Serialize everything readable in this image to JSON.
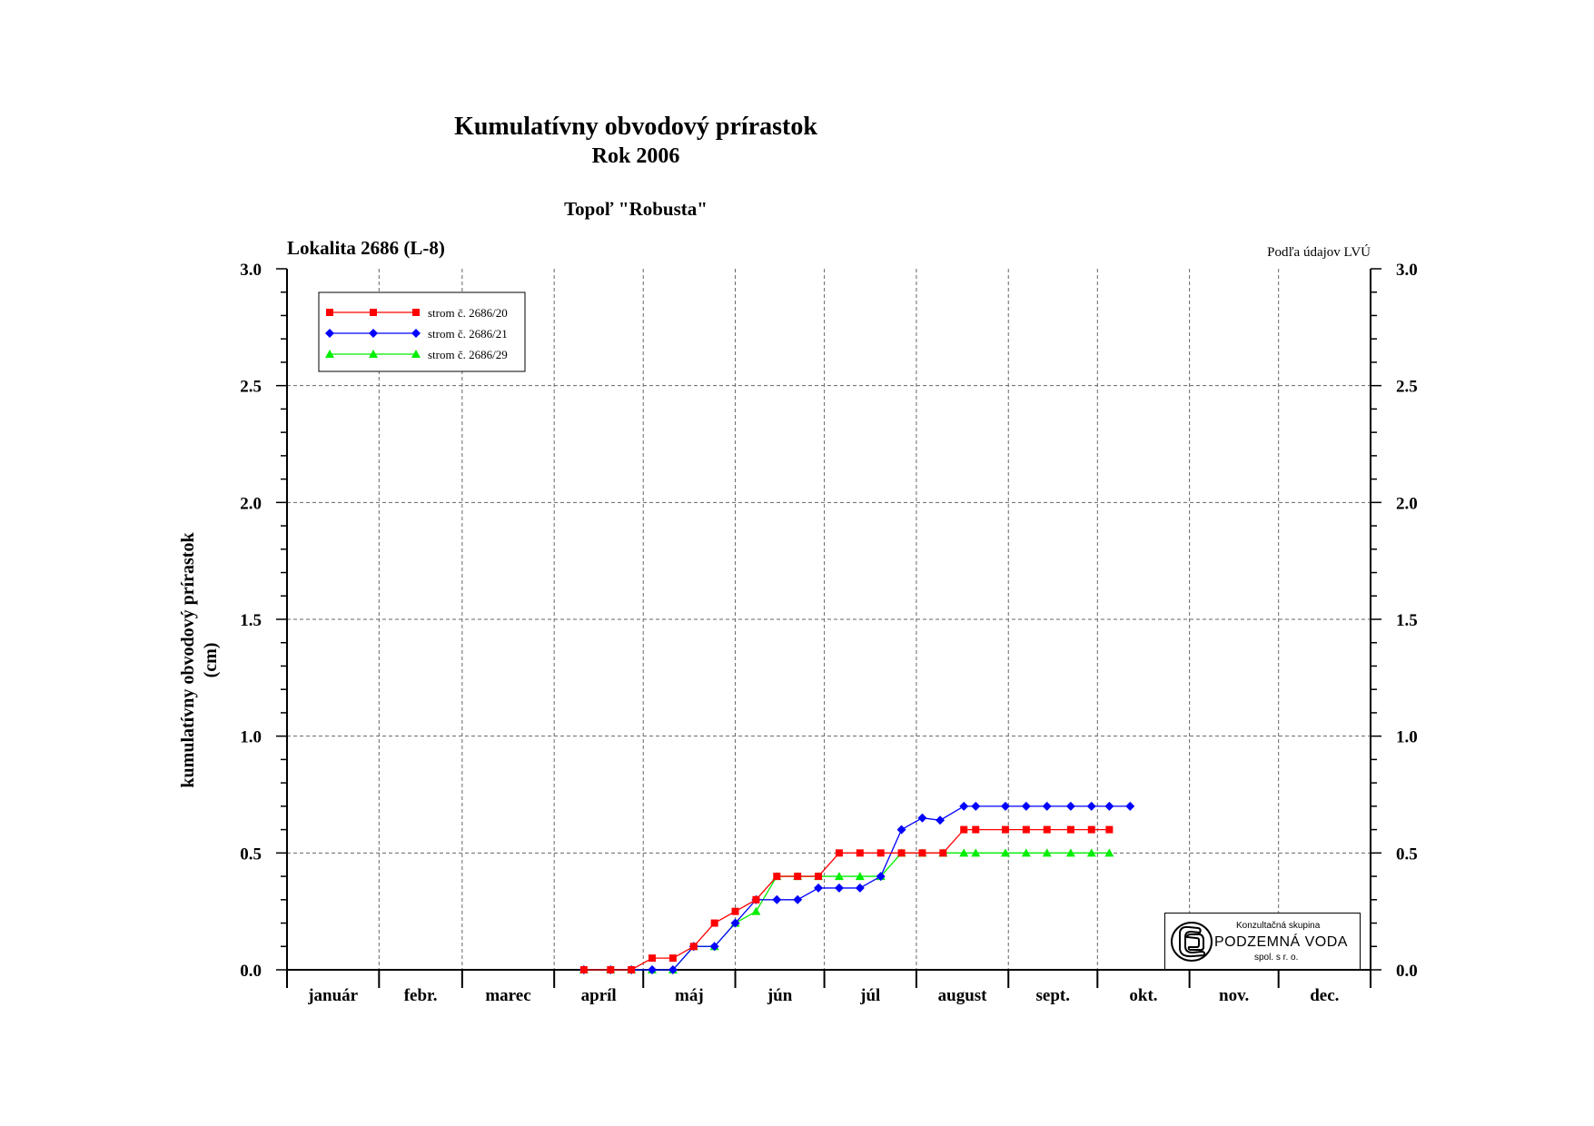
{
  "page": {
    "title": "Kumulatívny obvodový prírastok",
    "subtitle": "Rok 2006",
    "species": "Topoľ \"Robusta\"",
    "location": "Lokalita 2686 (L-8)",
    "source_note": "Podľa údajov LVÚ"
  },
  "logo": {
    "line1": "Konzultačná skupina",
    "line2": "PODZEMNÁ VODA",
    "line3": "spol. s r. o.",
    "icon": "podzemna-voda-logo-icon"
  },
  "chart_data": {
    "type": "line",
    "title": "Kumulatívny obvodový prírastok",
    "ylabel_line1": "kumulatívny obvodový prírastok",
    "ylabel_line2": "(cm)",
    "ylim": [
      0,
      3
    ],
    "y_ticks": [
      "0.0",
      "0.5",
      "1.0",
      "1.5",
      "2.0",
      "2.5",
      "3.0"
    ],
    "y_tick_values": [
      0,
      0.5,
      1,
      1.5,
      2,
      2.5,
      3
    ],
    "x_axis": "day of year 2006",
    "xlim": [
      0,
      365
    ],
    "month_labels": [
      "január",
      "febr.",
      "marec",
      "apríl",
      "máj",
      "jún",
      "júl",
      "august",
      "sept.",
      "okt.",
      "nov.",
      "dec."
    ],
    "month_starts": [
      0,
      31,
      59,
      90,
      120,
      151,
      181,
      212,
      243,
      273,
      304,
      334
    ],
    "grid": true,
    "legend_position": "top-left",
    "series": [
      {
        "name": "strom č. 2686/20",
        "color": "#ff0000",
        "marker": "square",
        "points": [
          [
            100,
            0
          ],
          [
            109,
            0
          ],
          [
            116,
            0
          ],
          [
            123,
            0.05
          ],
          [
            130,
            0.05
          ],
          [
            137,
            0.1
          ],
          [
            144,
            0.2
          ],
          [
            151,
            0.25
          ],
          [
            158,
            0.3
          ],
          [
            165,
            0.4
          ],
          [
            172,
            0.4
          ],
          [
            179,
            0.4
          ],
          [
            186,
            0.5
          ],
          [
            193,
            0.5
          ],
          [
            200,
            0.5
          ],
          [
            207,
            0.5
          ],
          [
            214,
            0.5
          ],
          [
            221,
            0.5
          ],
          [
            228,
            0.6
          ],
          [
            232,
            0.6
          ],
          [
            242,
            0.6
          ],
          [
            249,
            0.6
          ],
          [
            256,
            0.6
          ],
          [
            264,
            0.6
          ],
          [
            271,
            0.6
          ],
          [
            277,
            0.6
          ]
        ]
      },
      {
        "name": "strom č. 2686/21",
        "color": "#0000ff",
        "marker": "diamond",
        "points": [
          [
            100,
            0
          ],
          [
            109,
            0
          ],
          [
            116,
            0
          ],
          [
            123,
            0
          ],
          [
            130,
            0
          ],
          [
            137,
            0.1
          ],
          [
            144,
            0.1
          ],
          [
            151,
            0.2
          ],
          [
            158,
            0.3
          ],
          [
            165,
            0.3
          ],
          [
            172,
            0.3
          ],
          [
            179,
            0.35
          ],
          [
            186,
            0.35
          ],
          [
            193,
            0.35
          ],
          [
            200,
            0.4
          ],
          [
            207,
            0.6
          ],
          [
            214,
            0.65
          ],
          [
            220,
            0.64
          ],
          [
            228,
            0.7
          ],
          [
            232,
            0.7
          ],
          [
            242,
            0.7
          ],
          [
            249,
            0.7
          ],
          [
            256,
            0.7
          ],
          [
            264,
            0.7
          ],
          [
            271,
            0.7
          ],
          [
            277,
            0.7
          ],
          [
            284,
            0.7
          ]
        ]
      },
      {
        "name": "strom č. 2686/29",
        "color": "#00ee00",
        "marker": "triangle",
        "points": [
          [
            100,
            0
          ],
          [
            109,
            0
          ],
          [
            116,
            0
          ],
          [
            123,
            0
          ],
          [
            130,
            0
          ],
          [
            137,
            0.1
          ],
          [
            144,
            0.1
          ],
          [
            151,
            0.2
          ],
          [
            158,
            0.25
          ],
          [
            165,
            0.4
          ],
          [
            172,
            0.4
          ],
          [
            179,
            0.4
          ],
          [
            186,
            0.4
          ],
          [
            193,
            0.4
          ],
          [
            200,
            0.4
          ],
          [
            207,
            0.5
          ],
          [
            214,
            0.5
          ],
          [
            221,
            0.5
          ],
          [
            228,
            0.5
          ],
          [
            232,
            0.5
          ],
          [
            242,
            0.5
          ],
          [
            249,
            0.5
          ],
          [
            256,
            0.5
          ],
          [
            264,
            0.5
          ],
          [
            271,
            0.5
          ],
          [
            277,
            0.5
          ]
        ]
      }
    ]
  }
}
